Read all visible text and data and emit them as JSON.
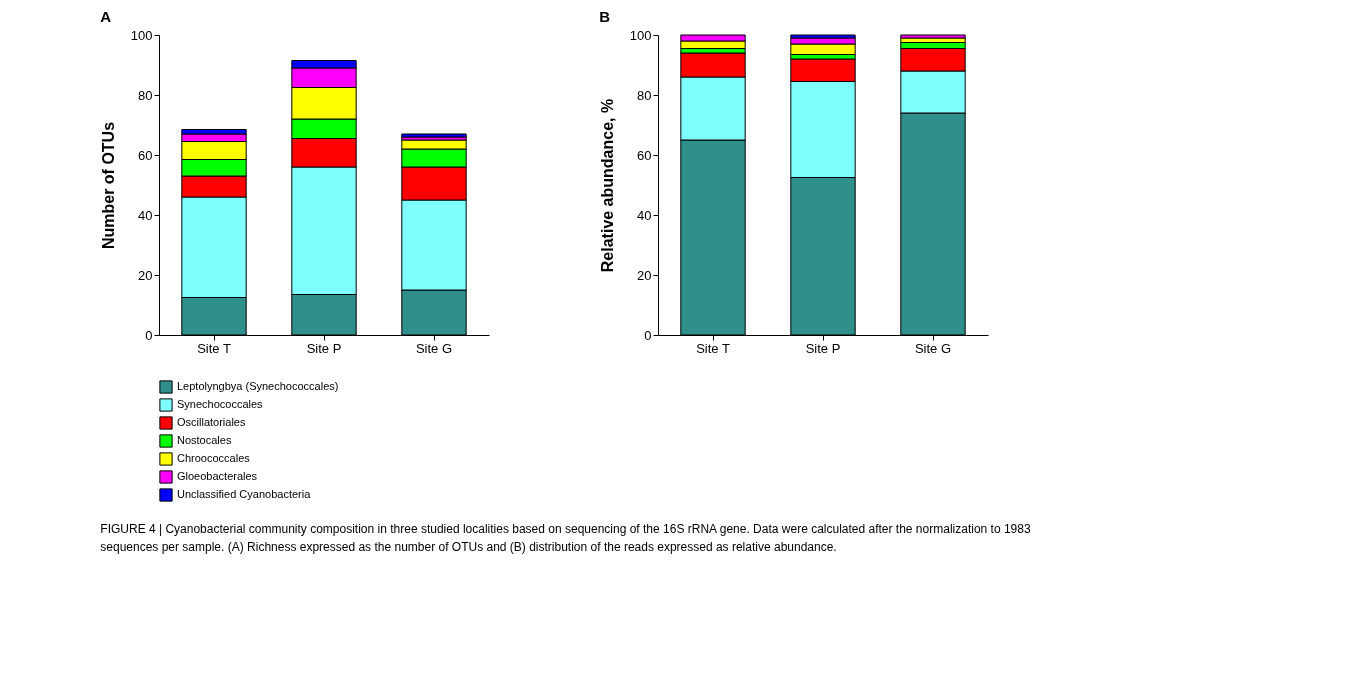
{
  "chart_data": [
    {
      "type": "bar",
      "title": "A",
      "ylabel": "Number of OTUs",
      "categories": [
        "Site T",
        "Site P",
        "Site G"
      ],
      "stacked": true,
      "ylim": [
        0,
        100
      ],
      "yticks": [
        0,
        20,
        40,
        60,
        80,
        100
      ],
      "grid": false,
      "legend": "bottom",
      "series": [
        {
          "name": "Leptolyngbya (Synechococcales)",
          "color": "#2f8f8a",
          "values": [
            12.5,
            13.5,
            15
          ]
        },
        {
          "name": "Synechococcales",
          "color": "#80ffff",
          "values": [
            33.5,
            42.5,
            30
          ]
        },
        {
          "name": "Oscillatoriales",
          "color": "#ff0000",
          "values": [
            7,
            9.5,
            11
          ]
        },
        {
          "name": "Nostocales",
          "color": "#00ff00",
          "values": [
            5.5,
            6.5,
            6
          ]
        },
        {
          "name": "Chroococcales",
          "color": "#ffff00",
          "values": [
            6,
            10.5,
            3
          ]
        },
        {
          "name": "Gloeobacterales",
          "color": "#ff00ff",
          "values": [
            2.5,
            6.5,
            1
          ]
        },
        {
          "name": "Unclassified Cyanobacteria",
          "color": "#0000ff",
          "values": [
            1.5,
            2.5,
            1
          ]
        }
      ]
    },
    {
      "type": "bar",
      "title": "B",
      "ylabel": "Relative abundance, %",
      "categories": [
        "Site T",
        "Site P",
        "Site G"
      ],
      "stacked": true,
      "ylim": [
        0,
        100
      ],
      "yticks": [
        0,
        20,
        40,
        60,
        80,
        100
      ],
      "grid": false,
      "legend": "bottom",
      "series": [
        {
          "name": "Leptolyngbya (Synechococcales)",
          "color": "#2f8f8a",
          "values": [
            65,
            52.5,
            74
          ]
        },
        {
          "name": "Synechococcales",
          "color": "#80ffff",
          "values": [
            21,
            32,
            14
          ]
        },
        {
          "name": "Oscillatoriales",
          "color": "#ff0000",
          "values": [
            8,
            7.5,
            7.5
          ]
        },
        {
          "name": "Nostocales",
          "color": "#00ff00",
          "values": [
            1.5,
            1.5,
            2
          ]
        },
        {
          "name": "Chroococcales",
          "color": "#ffff00",
          "values": [
            2.5,
            3.5,
            1.5
          ]
        },
        {
          "name": "Gloeobacterales",
          "color": "#ff00ff",
          "values": [
            2,
            2,
            1
          ]
        },
        {
          "name": "Unclassified Cyanobacteria",
          "color": "#0000ff",
          "values": [
            null,
            1,
            null
          ]
        }
      ],
      "annotations": [
        "FIGURE 4 | Cyanobacterial community composition in three studied localities based on sequencing of the 16S rRNA gene. Data were calculated after the normalization to 1983 sequences per sample. (A) Richness expressed as the number of OTUs and (B) distribution of the reads expressed as relative abundance."
      ]
    }
  ]
}
